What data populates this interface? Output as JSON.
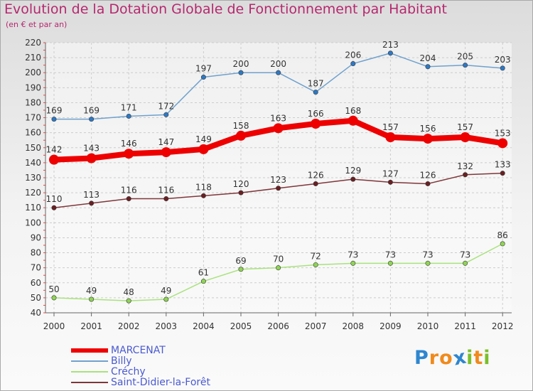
{
  "header": {
    "title": "Evolution de la Dotation Globale de Fonctionnement par Habitant",
    "subtitle": "(en € et par an)"
  },
  "chart_data": {
    "type": "line",
    "title": "Evolution de la Dotation Globale de Fonctionnement par Habitant",
    "subtitle": "(en € et par an)",
    "xlabel": "",
    "ylabel": "",
    "ylim": [
      40,
      220
    ],
    "y_ticks": [
      40,
      50,
      60,
      70,
      80,
      90,
      100,
      110,
      120,
      130,
      140,
      150,
      160,
      170,
      180,
      190,
      200,
      210,
      220
    ],
    "grid": true,
    "legend_position": "bottom-left",
    "categories": [
      "2000",
      "2001",
      "2002",
      "2003",
      "2004",
      "2005",
      "2006",
      "2007",
      "2008",
      "2009",
      "2010",
      "2011",
      "2012"
    ],
    "series": [
      {
        "name": "MARCENAT",
        "color": "#ee0000",
        "marker": "#ee0000",
        "bold": true,
        "values": [
          142,
          143,
          146,
          147,
          149,
          158,
          163,
          166,
          168,
          157,
          156,
          157,
          153
        ]
      },
      {
        "name": "Billy",
        "color": "#6fa1ce",
        "marker": "#2d79c5",
        "values": [
          169,
          169,
          171,
          172,
          197,
          200,
          200,
          187,
          206,
          213,
          204,
          205,
          203
        ]
      },
      {
        "name": "Créchy",
        "color": "#a9e27c",
        "marker": "#8fd454",
        "values": [
          50,
          49,
          48,
          49,
          61,
          69,
          70,
          72,
          73,
          73,
          73,
          73,
          86
        ]
      },
      {
        "name": "Saint-Didier-la-Forêt",
        "color": "#80363a",
        "marker": "#6a1f22",
        "values": [
          110,
          113,
          116,
          116,
          118,
          120,
          123,
          126,
          129,
          127,
          126,
          132,
          133
        ]
      }
    ]
  },
  "logo": {
    "text": "Proxiti",
    "letters": [
      "P",
      "r",
      "o",
      "x",
      "i",
      "t",
      "i"
    ],
    "colors": [
      "#2e86cf",
      "#f08a1c",
      "#f08a1c",
      "#2e86cf",
      "#7abf2a",
      "#f08a1c",
      "#7abf2a"
    ]
  }
}
